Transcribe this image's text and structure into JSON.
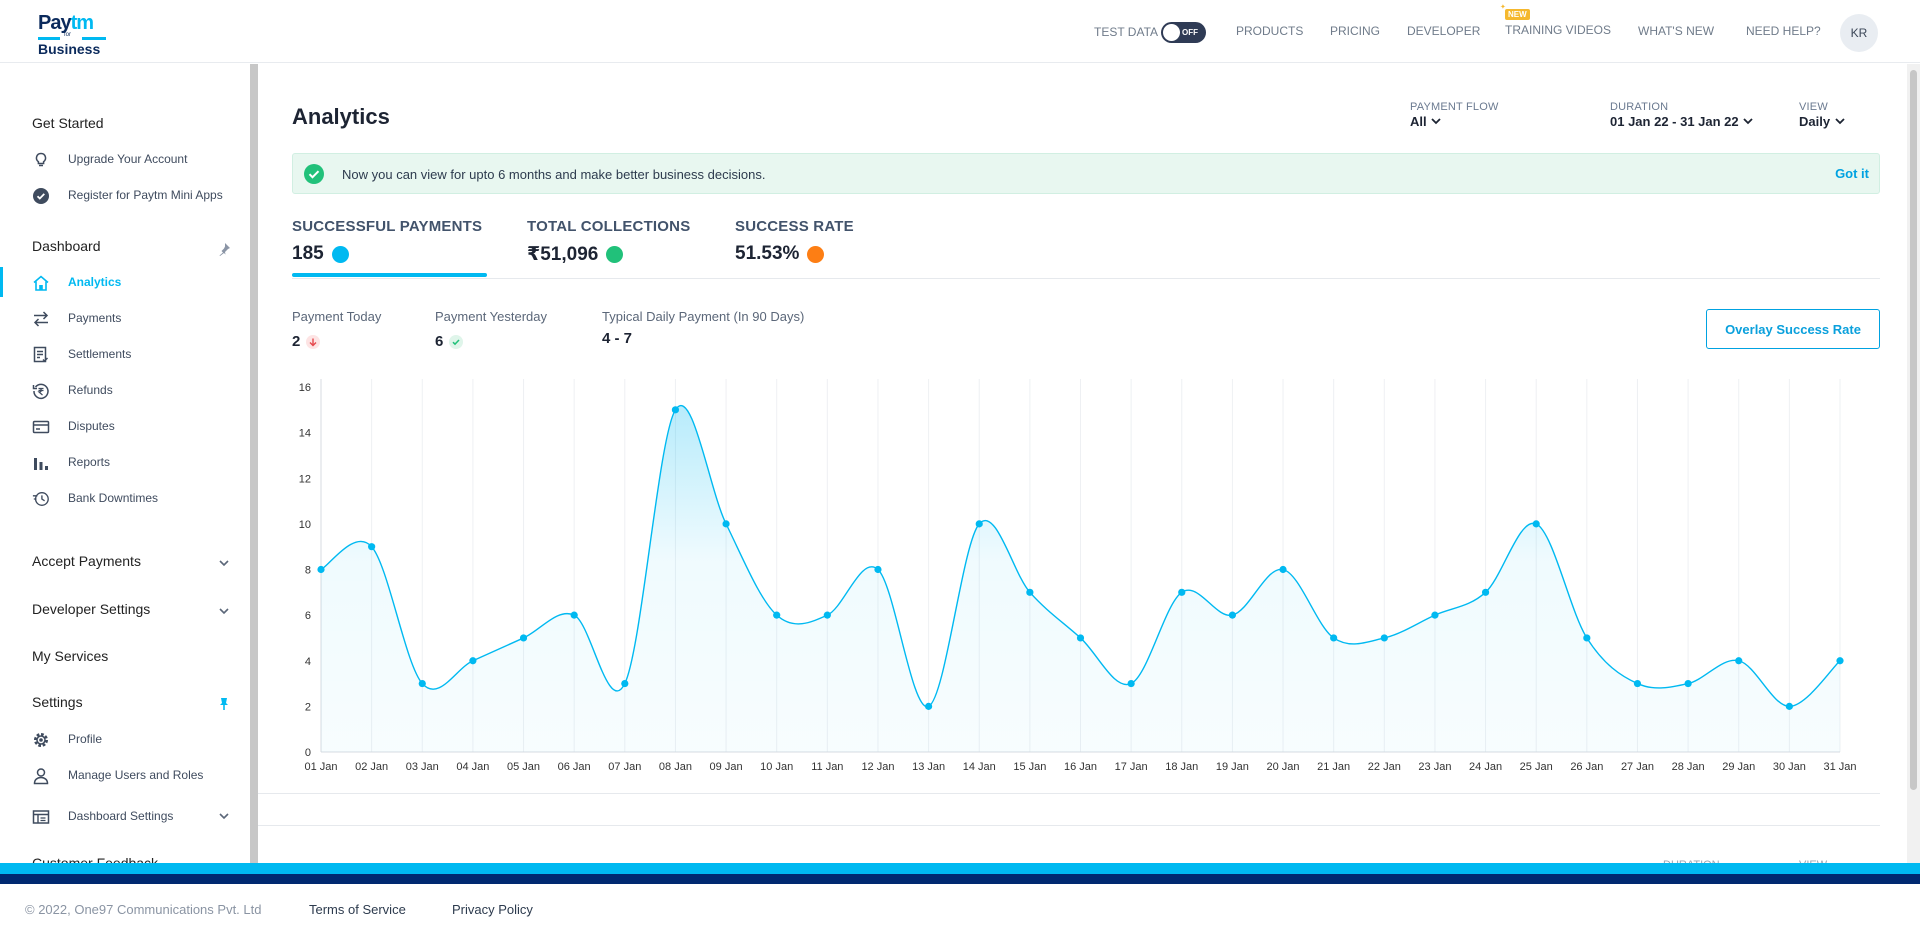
{
  "header": {
    "logo": {
      "line1a": "Pay",
      "line1b": "tm",
      "line2": "for",
      "line3": "Business"
    },
    "test_data_label": "TEST DATA",
    "toggle_state": "OFF",
    "nav": [
      "PRODUCTS",
      "PRICING",
      "DEVELOPER",
      "TRAINING VIDEOS",
      "WHAT'S NEW",
      "NEED HELP?"
    ],
    "new_badge": "NEW",
    "avatar_initials": "KR"
  },
  "sidebar": {
    "get_started": "Get Started",
    "get_started_items": [
      "Upgrade Your Account",
      "Register for Paytm Mini Apps"
    ],
    "dashboard": "Dashboard",
    "dashboard_items": [
      "Analytics",
      "Payments",
      "Settlements",
      "Refunds",
      "Disputes",
      "Reports",
      "Bank Downtimes"
    ],
    "active_item": "Analytics",
    "accept_payments": "Accept Payments",
    "developer_settings": "Developer Settings",
    "my_services": "My Services",
    "settings": "Settings",
    "settings_items": [
      "Profile",
      "Manage Users and Roles",
      "Dashboard Settings"
    ],
    "customer_feedback": "Customer Feedback"
  },
  "main": {
    "title": "Analytics",
    "filters": {
      "payment_flow_label": "PAYMENT FLOW",
      "payment_flow_value": "All",
      "duration_label": "DURATION",
      "duration_value": "01 Jan 22 - 31 Jan 22",
      "view_label": "VIEW",
      "view_value": "Daily"
    },
    "banner": {
      "text": "Now you can view for upto 6 months and make better business decisions.",
      "action": "Got it"
    },
    "metrics": [
      {
        "label": "SUCCESSFUL PAYMENTS",
        "value": "185",
        "color": "#00b9f1"
      },
      {
        "label": "TOTAL COLLECTIONS",
        "value": "₹51,096",
        "color": "#21c17a"
      },
      {
        "label": "SUCCESS RATE",
        "value": "51.53%",
        "color": "#fd7e14"
      }
    ],
    "sub_stats": [
      {
        "label": "Payment Today",
        "value": "2"
      },
      {
        "label": "Payment Yesterday",
        "value": "6"
      },
      {
        "label": "Typical Daily Payment (In 90 Days)",
        "value": "4 - 7"
      }
    ],
    "overlay_button": "Overlay Success Rate",
    "ghost_labels": [
      "DURATION",
      "VIEW"
    ]
  },
  "chart_data": {
    "type": "area",
    "categories": [
      "01 Jan",
      "02 Jan",
      "03 Jan",
      "04 Jan",
      "05 Jan",
      "06 Jan",
      "07 Jan",
      "08 Jan",
      "09 Jan",
      "10 Jan",
      "11 Jan",
      "12 Jan",
      "13 Jan",
      "14 Jan",
      "15 Jan",
      "16 Jan",
      "17 Jan",
      "18 Jan",
      "19 Jan",
      "20 Jan",
      "21 Jan",
      "22 Jan",
      "23 Jan",
      "24 Jan",
      "25 Jan",
      "26 Jan",
      "27 Jan",
      "28 Jan",
      "29 Jan",
      "30 Jan",
      "31 Jan"
    ],
    "values": [
      8,
      9,
      3,
      4,
      5,
      6,
      3,
      15,
      10,
      6,
      6,
      8,
      2,
      10,
      7,
      5,
      3,
      7,
      6,
      8,
      5,
      5,
      6,
      7,
      10,
      5,
      3,
      3,
      4,
      2,
      4
    ],
    "ylim": [
      0,
      16
    ],
    "yticks": [
      0,
      2,
      4,
      6,
      8,
      10,
      12,
      14,
      16
    ],
    "color": "#00b9f1",
    "grid": "vertical"
  },
  "footer": {
    "copyright": "© 2022, One97 Communications Pvt. Ltd",
    "links": [
      "Terms of Service",
      "Privacy Policy"
    ]
  }
}
